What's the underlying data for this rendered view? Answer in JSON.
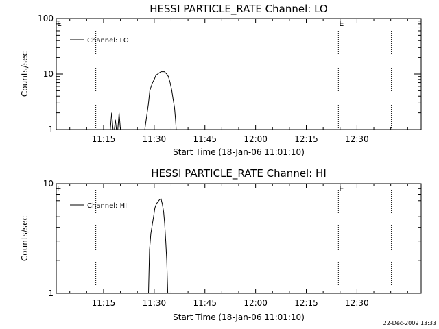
{
  "footer_timestamp": "22-Dec-2009 13:33",
  "chart_data": [
    {
      "type": "line",
      "title": "HESSI PARTICLE_RATE Channel: LO",
      "xlabel": "Start Time (18-Jan-06 11:01:10)",
      "ylabel": "Counts/sec",
      "yscale": "log",
      "ylim": [
        1,
        100
      ],
      "yticks": [
        {
          "value": 1,
          "label": "1"
        },
        {
          "value": 10,
          "label": "10"
        },
        {
          "value": 100,
          "label": "100"
        }
      ],
      "xlim": [
        0,
        108
      ],
      "xticks": [
        {
          "value": 14,
          "label": "11:15"
        },
        {
          "value": 29,
          "label": "11:30"
        },
        {
          "value": 44,
          "label": "11:45"
        },
        {
          "value": 59,
          "label": "12:00"
        },
        {
          "value": 74,
          "label": "12:15"
        },
        {
          "value": 89,
          "label": "12:30"
        }
      ],
      "legend": {
        "label": "Channel: LO",
        "position": "top-left"
      },
      "markers": [
        {
          "x": 0,
          "label": "E"
        },
        {
          "x": 83.5,
          "label": "E"
        }
      ],
      "vlines": [
        11.7,
        83.5,
        99.2
      ],
      "grid": false,
      "series": [
        {
          "name": "Channel: LO",
          "segments": [
            [
              [
                16,
                1
              ],
              [
                16.4,
                2.0
              ],
              [
                16.8,
                1
              ]
            ],
            [
              [
                17.2,
                1
              ],
              [
                17.5,
                1.5
              ],
              [
                17.8,
                1
              ]
            ],
            [
              [
                18.2,
                1
              ],
              [
                18.6,
                2.0
              ],
              [
                19.0,
                1
              ]
            ],
            [
              [
                26.2,
                1
              ],
              [
                26.8,
                1.8
              ],
              [
                27.3,
                3
              ],
              [
                27.7,
                5
              ],
              [
                28.1,
                6
              ],
              [
                28.5,
                7
              ],
              [
                29.0,
                8
              ],
              [
                29.5,
                9.5
              ],
              [
                30.0,
                10
              ],
              [
                31.0,
                11
              ],
              [
                32.0,
                11
              ],
              [
                32.7,
                10
              ],
              [
                33.2,
                9
              ],
              [
                33.7,
                7
              ],
              [
                34.2,
                5
              ],
              [
                34.6,
                3.5
              ],
              [
                35.0,
                2.5
              ],
              [
                35.3,
                1.5
              ],
              [
                35.5,
                1
              ]
            ]
          ]
        }
      ]
    },
    {
      "type": "line",
      "title": "HESSI PARTICLE_RATE Channel: HI",
      "xlabel": "Start Time (18-Jan-06 11:01:10)",
      "ylabel": "Counts/sec",
      "yscale": "log",
      "ylim": [
        1,
        10
      ],
      "yticks": [
        {
          "value": 1,
          "label": "1"
        },
        {
          "value": 10,
          "label": "10"
        }
      ],
      "xlim": [
        0,
        108
      ],
      "xticks": [
        {
          "value": 14,
          "label": "11:15"
        },
        {
          "value": 29,
          "label": "11:30"
        },
        {
          "value": 44,
          "label": "11:45"
        },
        {
          "value": 59,
          "label": "12:00"
        },
        {
          "value": 74,
          "label": "12:15"
        },
        {
          "value": 89,
          "label": "12:30"
        }
      ],
      "legend": {
        "label": "Channel: HI",
        "position": "top-left"
      },
      "markers": [
        {
          "x": 0,
          "label": "E"
        },
        {
          "x": 83.5,
          "label": "E"
        }
      ],
      "vlines": [
        11.7,
        83.5,
        99.2
      ],
      "grid": false,
      "series": [
        {
          "name": "Channel: HI",
          "segments": [
            [
              [
                27.3,
                1
              ],
              [
                27.6,
                2.5
              ],
              [
                28.0,
                3.5
              ],
              [
                28.4,
                4.2
              ],
              [
                28.8,
                5
              ],
              [
                29.2,
                6
              ],
              [
                29.6,
                6.5
              ],
              [
                30.0,
                6.8
              ],
              [
                30.5,
                7.1
              ],
              [
                31.0,
                7.3
              ],
              [
                31.4,
                6.5
              ],
              [
                31.8,
                5.5
              ],
              [
                32.1,
                4.3
              ],
              [
                32.4,
                3.0
              ],
              [
                32.7,
                2.0
              ],
              [
                33.0,
                1
              ]
            ]
          ]
        }
      ]
    }
  ]
}
